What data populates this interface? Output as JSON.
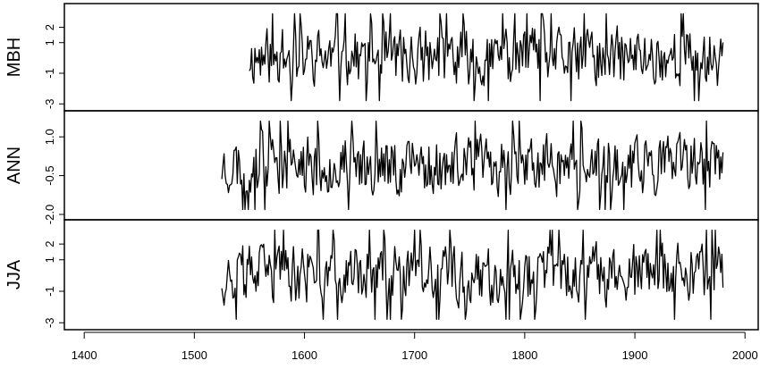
{
  "chart_data": {
    "type": "line",
    "x_ticks": [
      1400,
      1500,
      1600,
      1700,
      1800,
      1900,
      2000
    ],
    "xlim": [
      1382,
      2012
    ],
    "panels": [
      {
        "name": "MBH",
        "ylabel": "MBH",
        "ylim": [
          -3.1,
          3.2
        ],
        "y_ticks": [
          2,
          1,
          -1,
          -3
        ],
        "y_tick_labels": [
          "2",
          "1",
          "-1",
          "-3"
        ],
        "x_start": 1550,
        "x_end": 1980,
        "seed": 11
      },
      {
        "name": "ANN",
        "ylabel": "ANN",
        "ylim": [
          -2.0,
          1.8
        ],
        "y_ticks": [
          1.0,
          -0.5,
          -2.0
        ],
        "y_tick_labels": [
          "1.0",
          "-0.5",
          "-2.0"
        ],
        "x_start": 1525,
        "x_end": 1980,
        "seed": 23
      },
      {
        "name": "JJA",
        "ylabel": "JJA",
        "ylim": [
          -3.1,
          3.2
        ],
        "y_ticks": [
          2,
          1,
          -1,
          -3
        ],
        "y_tick_labels": [
          "2",
          "1",
          "-1",
          "-3"
        ],
        "x_start": 1525,
        "x_end": 1980,
        "seed": 37
      }
    ]
  }
}
